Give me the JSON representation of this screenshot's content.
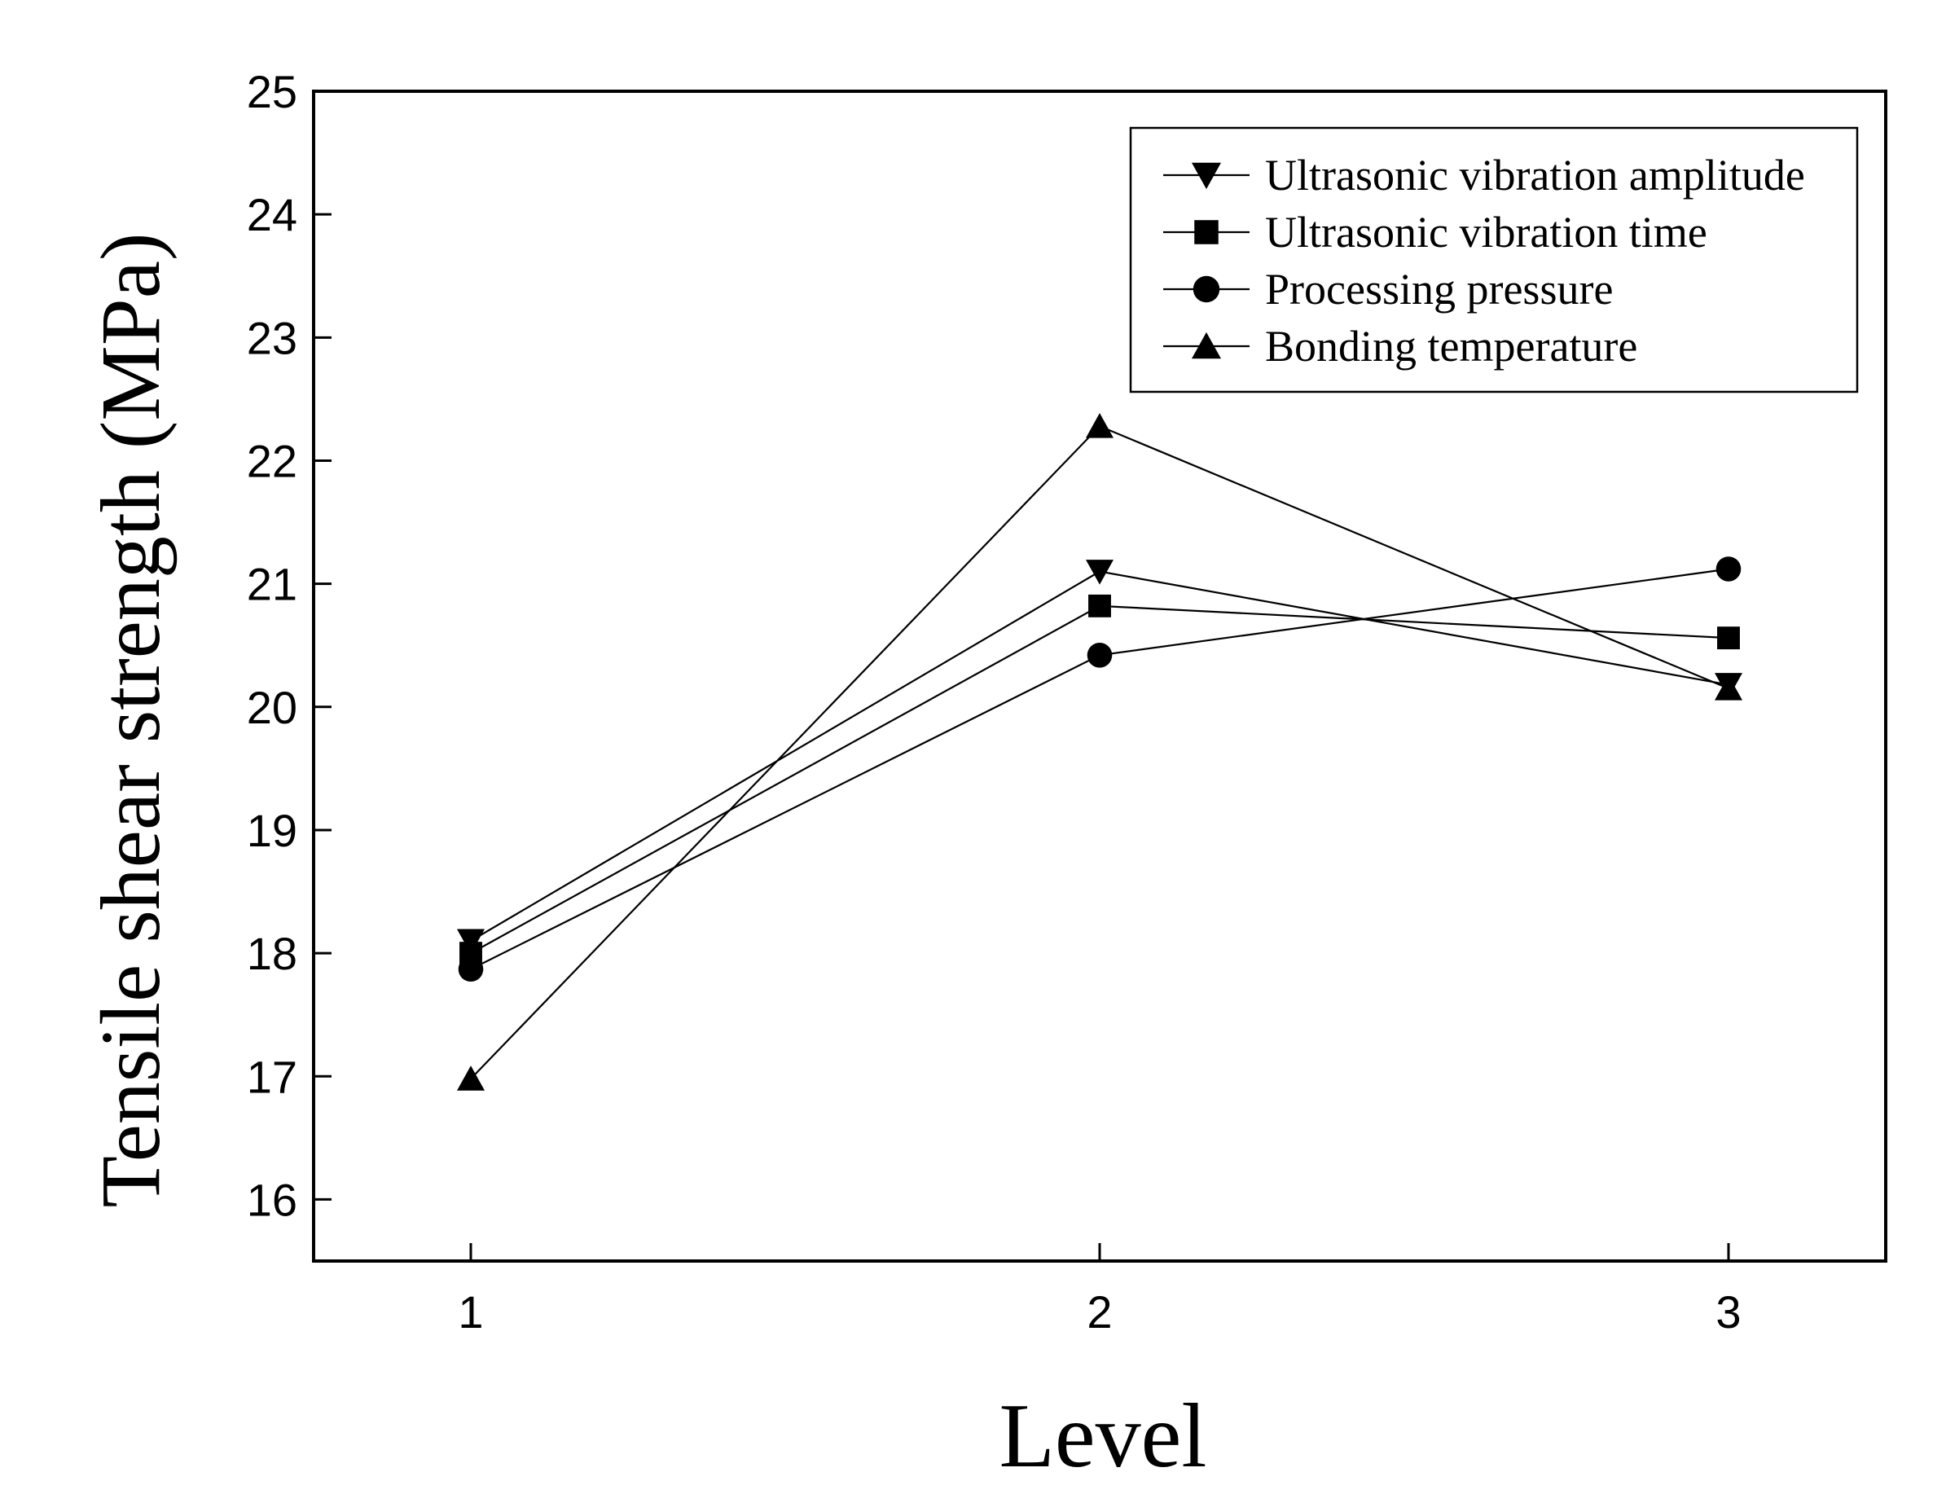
{
  "chart_data": {
    "type": "line",
    "title": "",
    "xlabel": "Level",
    "ylabel": "Tensile shear strength (MPa)",
    "x": [
      1,
      2,
      3
    ],
    "xticks": [
      "1",
      "2",
      "3"
    ],
    "xlim": [
      0.75,
      3.25
    ],
    "yticks": [
      "16",
      "17",
      "18",
      "19",
      "20",
      "21",
      "22",
      "23",
      "24",
      "25"
    ],
    "ylim": [
      15.5,
      25
    ],
    "legend_position": "top-right",
    "series": [
      {
        "name": "Ultrasonic vibration amplitude",
        "marker": "triangle-down",
        "values": [
          18.1,
          21.1,
          20.18
        ]
      },
      {
        "name": "Ultrasonic vibration time",
        "marker": "square",
        "values": [
          18.0,
          20.82,
          20.56
        ]
      },
      {
        "name": "Processing pressure",
        "marker": "circle",
        "values": [
          17.87,
          20.42,
          21.12
        ]
      },
      {
        "name": "Bonding temperature",
        "marker": "triangle-up",
        "values": [
          16.98,
          22.28,
          20.15
        ]
      }
    ]
  },
  "colors": {
    "line": "#000000",
    "background": "#ffffff"
  }
}
